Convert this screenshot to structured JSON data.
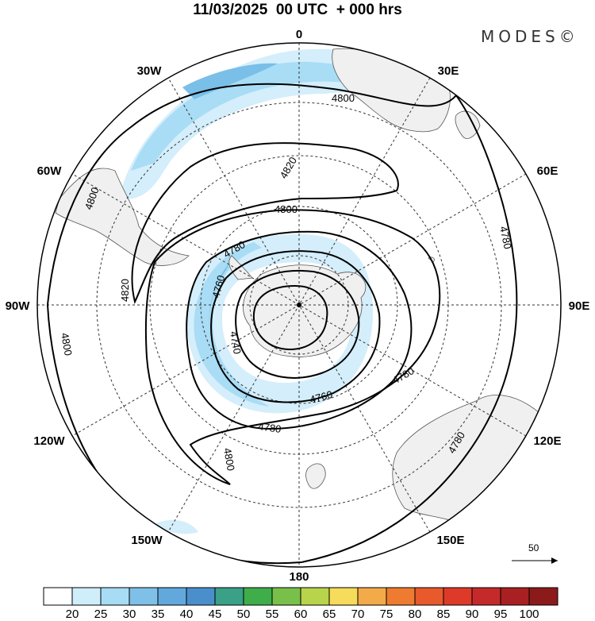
{
  "header": {
    "title": "11/03/2025  00 UTC  + 000 hrs",
    "brand": "MODES©"
  },
  "map": {
    "projection": "south-polar-stereographic",
    "longitude_labels": [
      "0",
      "30E",
      "60E",
      "90E",
      "120E",
      "150E",
      "180",
      "150W",
      "120W",
      "90W",
      "60W",
      "30W"
    ],
    "contour_labels": [
      "4800",
      "4820",
      "4800",
      "4820",
      "4800",
      "4780",
      "4760",
      "4740",
      "4780",
      "4760",
      "4780",
      "4780",
      "4780",
      "4800",
      "4800",
      "4780"
    ],
    "wind_reference": {
      "value": "50"
    },
    "colors": {
      "land": "#f0f0f0",
      "coast": "#555555",
      "grid": "#333333",
      "contour": "#000000",
      "wind_20_25": "#d4eefb",
      "wind_25_30": "#a9dcf5",
      "wind_30_35": "#79bfe8"
    }
  },
  "colorbar": {
    "labels": [
      "20",
      "25",
      "30",
      "35",
      "40",
      "45",
      "50",
      "55",
      "60",
      "65",
      "70",
      "75",
      "80",
      "85",
      "90",
      "95",
      "100"
    ],
    "colors": [
      "#ffffff",
      "#cfeefa",
      "#a7dcf4",
      "#7ec0e8",
      "#62a8dc",
      "#4a8fcc",
      "#3aa088",
      "#3fae4a",
      "#78c04a",
      "#b8d44a",
      "#f6dc5a",
      "#f3aa48",
      "#ef7b30",
      "#e85a2c",
      "#dd3a2a",
      "#c42a2a",
      "#a82022",
      "#8c1a1a"
    ]
  }
}
